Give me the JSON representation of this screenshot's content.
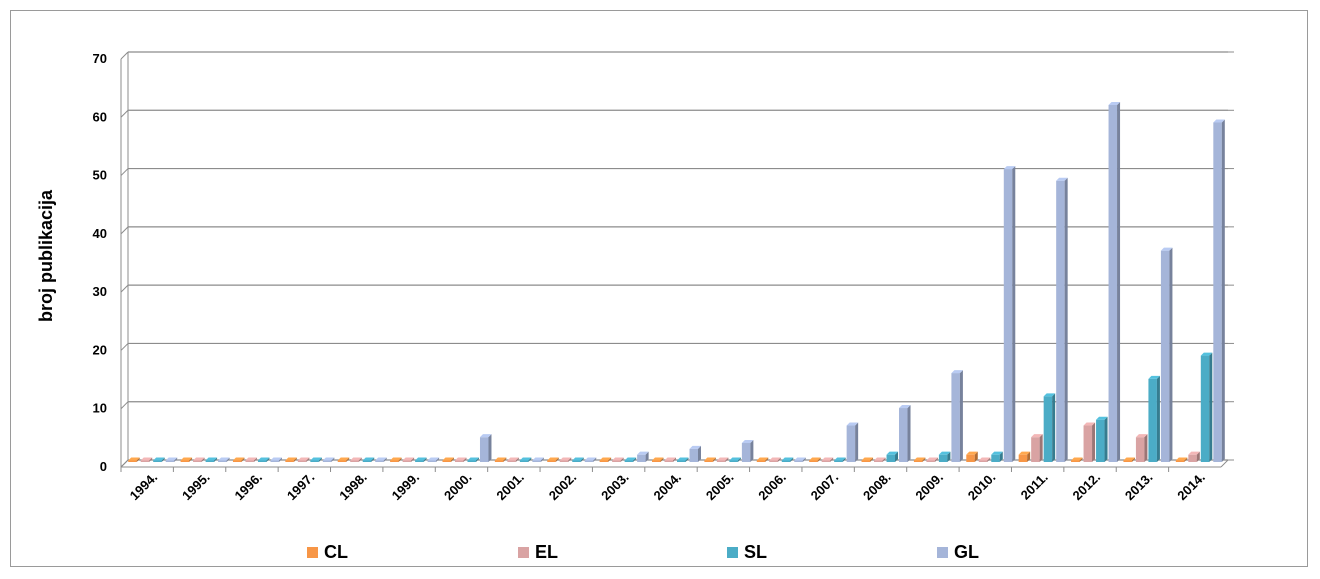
{
  "chart_data": {
    "type": "bar",
    "title": "",
    "xlabel": "",
    "ylabel": "broj publikacija",
    "ylim": [
      0,
      70
    ],
    "yticks": [
      "0",
      "10",
      "20",
      "30",
      "40",
      "50",
      "60",
      "70"
    ],
    "grid": true,
    "legend_position": "bottom",
    "categories": [
      "1994.",
      "1995.",
      "1996.",
      "1997.",
      "1998.",
      "1999.",
      "2000.",
      "2001.",
      "2002.",
      "2003.",
      "2004.",
      "2005.",
      "2006.",
      "2007.",
      "2008.",
      "2009.",
      "2010.",
      "2011.",
      "2012.",
      "2013.",
      "2014."
    ],
    "series": [
      {
        "name": "CL",
        "color": "#f79646",
        "values": [
          0,
          0,
          0,
          0,
          0,
          0,
          0,
          0,
          0,
          0,
          0,
          0,
          0,
          0,
          0,
          0,
          1,
          1,
          0,
          0,
          0
        ]
      },
      {
        "name": "EL",
        "color": "#d9a3a3",
        "values": [
          0,
          0,
          0,
          0,
          0,
          0,
          0,
          0,
          0,
          0,
          0,
          0,
          0,
          0,
          0,
          0,
          0,
          4,
          6,
          4,
          1
        ]
      },
      {
        "name": "SL",
        "color": "#4bacc6",
        "values": [
          0,
          0,
          0,
          0,
          0,
          0,
          0,
          0,
          0,
          0,
          0,
          0,
          0,
          0,
          1,
          1,
          1,
          11,
          7,
          14,
          18
        ]
      },
      {
        "name": "GL",
        "color": "#a5b5d9",
        "values": [
          0,
          0,
          0,
          0,
          0,
          0,
          4,
          0,
          0,
          1,
          2,
          3,
          0,
          6,
          9,
          15,
          50,
          48,
          61,
          36,
          58
        ]
      }
    ]
  }
}
